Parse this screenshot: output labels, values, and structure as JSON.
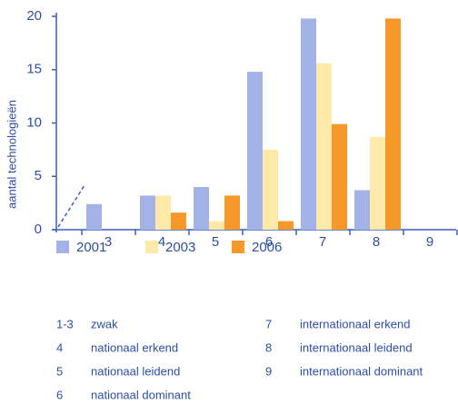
{
  "chart_data": {
    "type": "bar",
    "y_label": "aantal technologieën",
    "categories": [
      "3",
      "4",
      "5",
      "6",
      "7",
      "8",
      "9"
    ],
    "series": [
      {
        "name": "2001",
        "color": "#a3b3e8",
        "values": [
          2.4,
          3.2,
          4.0,
          14.8,
          19.8,
          3.7,
          0
        ]
      },
      {
        "name": "2003",
        "color": "#fde9a8",
        "values": [
          0,
          3.2,
          0.8,
          7.5,
          15.6,
          8.7,
          0
        ]
      },
      {
        "name": "2006",
        "color": "#f7992a",
        "values": [
          0,
          1.6,
          3.2,
          0.8,
          9.9,
          19.8,
          0
        ]
      }
    ],
    "ylim": [
      0,
      20
    ],
    "yticks": [
      0,
      5,
      10,
      15,
      20
    ],
    "grid": false
  },
  "notes": [
    {
      "code": "1-3",
      "label": "zwak"
    },
    {
      "code": "4",
      "label": "nationaal erkend"
    },
    {
      "code": "5",
      "label": "nationaal leidend"
    },
    {
      "code": "6",
      "label": "nationaal dominant"
    },
    {
      "code": "7",
      "label": "internationaal erkend"
    },
    {
      "code": "8",
      "label": "internationaal leidend"
    },
    {
      "code": "9",
      "label": "internationaal dominant"
    }
  ]
}
